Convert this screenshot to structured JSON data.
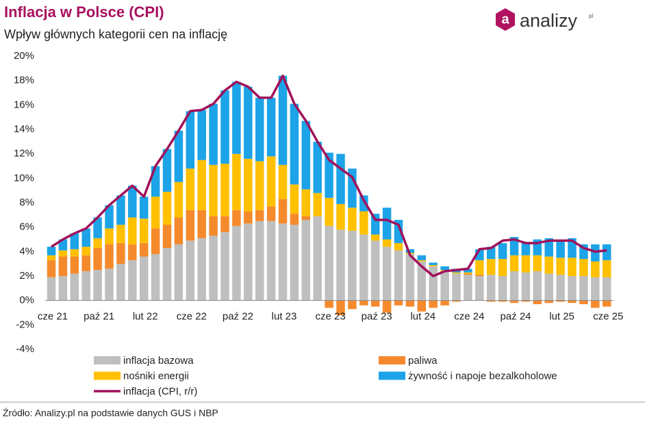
{
  "chart_data": {
    "type": "bar",
    "stacked": true,
    "title": "Inflacja w Polsce (CPI)",
    "subtitle": "Wpływ głównych kategorii cen na inflację",
    "source": "Źródło: Analizy.pl na podstawie danych GUS i NBP",
    "logo": {
      "icon_letter": "a",
      "text": "analizy",
      "suffix": "pl"
    },
    "categories": [
      "cze 21",
      null,
      null,
      null,
      "paź 21",
      null,
      null,
      null,
      "lut 22",
      null,
      null,
      null,
      "cze 22",
      null,
      null,
      null,
      "paź 22",
      null,
      null,
      null,
      "lut 23",
      null,
      null,
      null,
      "cze 23",
      null,
      null,
      null,
      "paź 23",
      null,
      null,
      null,
      "lut 24",
      null,
      null,
      null,
      "cze 24",
      null,
      null,
      null,
      "paź 24",
      null,
      null,
      null,
      "lut 25",
      null,
      null,
      null,
      "cze 25"
    ],
    "ylim": [
      -4,
      20
    ],
    "yticks": [
      {
        "value": -4,
        "label": "-4%"
      },
      {
        "value": -2,
        "label": "-2%"
      },
      {
        "value": 0,
        "label": "0%"
      },
      {
        "value": 2,
        "label": "2%"
      },
      {
        "value": 4,
        "label": "4%"
      },
      {
        "value": 6,
        "label": "6%"
      },
      {
        "value": 8,
        "label": "8%"
      },
      {
        "value": 10,
        "label": "10%"
      },
      {
        "value": 12,
        "label": "12%"
      },
      {
        "value": 14,
        "label": "14%"
      },
      {
        "value": 16,
        "label": "16%"
      },
      {
        "value": 18,
        "label": "18%"
      },
      {
        "value": 20,
        "label": "20%"
      }
    ],
    "grid": false,
    "series": [
      {
        "name": "inflacja bazowa",
        "type": "bar",
        "color": "#bfbfbf",
        "values": [
          1.9,
          2.0,
          2.2,
          2.4,
          2.5,
          2.6,
          3.0,
          3.3,
          3.6,
          3.8,
          4.3,
          4.6,
          4.9,
          5.1,
          5.3,
          5.6,
          6.1,
          6.3,
          6.5,
          6.5,
          6.3,
          6.2,
          6.6,
          6.9,
          6.1,
          5.8,
          5.7,
          5.4,
          4.9,
          4.4,
          4.1,
          3.8,
          3.2,
          2.8,
          2.4,
          2.2,
          2.1,
          2.0,
          2.1,
          2.0,
          2.4,
          2.3,
          2.4,
          2.2,
          2.1,
          2.0,
          2.0,
          1.9,
          1.9
        ]
      },
      {
        "name": "paliwa",
        "type": "bar",
        "color": "#f58a2c",
        "values": [
          1.4,
          1.6,
          1.4,
          1.3,
          1.8,
          2.0,
          1.7,
          1.3,
          1.1,
          2.1,
          1.9,
          2.2,
          2.5,
          2.3,
          1.6,
          1.3,
          1.3,
          1.0,
          0.9,
          1.2,
          2.0,
          0.9,
          0.3,
          0.0,
          -0.6,
          -1.2,
          -0.7,
          -0.4,
          -0.5,
          -1.0,
          -0.4,
          -0.5,
          -0.9,
          -0.6,
          -0.4,
          -0.1,
          0.1,
          0.1,
          -0.1,
          -0.1,
          -0.2,
          -0.1,
          -0.3,
          -0.2,
          -0.1,
          -0.2,
          -0.3,
          -0.6,
          -0.5
        ]
      },
      {
        "name": "nośniki energii",
        "type": "bar",
        "color": "#ffc000",
        "values": [
          0.4,
          0.5,
          0.6,
          0.7,
          0.8,
          1.3,
          1.5,
          2.2,
          2.0,
          2.6,
          2.7,
          2.9,
          3.4,
          4.1,
          4.2,
          4.3,
          4.6,
          4.3,
          4.0,
          4.1,
          2.8,
          2.4,
          2.2,
          1.9,
          2.3,
          2.1,
          1.9,
          1.9,
          0.5,
          0.6,
          0.6,
          0.1,
          0.1,
          0.1,
          0.1,
          0.1,
          0.1,
          1.2,
          1.3,
          1.4,
          1.3,
          1.4,
          1.3,
          1.4,
          1.4,
          1.5,
          1.4,
          1.3,
          1.4
        ]
      },
      {
        "name": "żywność i napoje bezalkoholowe",
        "type": "bar",
        "color": "#1ca3e8",
        "values": [
          0.7,
          0.9,
          1.3,
          1.5,
          1.7,
          1.9,
          2.4,
          2.6,
          1.8,
          2.5,
          3.5,
          4.2,
          4.7,
          4.1,
          5.0,
          6.0,
          5.9,
          5.9,
          5.2,
          4.8,
          7.3,
          6.6,
          5.6,
          4.2,
          3.7,
          4.1,
          3.2,
          1.3,
          1.7,
          2.6,
          1.9,
          0.3,
          0.4,
          0.2,
          0.3,
          0.3,
          0.3,
          0.9,
          1.0,
          1.3,
          1.5,
          1.1,
          1.3,
          1.5,
          1.5,
          1.6,
          1.2,
          1.4,
          1.3
        ]
      },
      {
        "name": "inflacja (CPI, r/r)",
        "type": "line",
        "color": "#a0115a",
        "values": [
          4.4,
          5.0,
          5.5,
          5.9,
          6.8,
          7.8,
          8.6,
          9.4,
          8.5,
          11.0,
          12.4,
          13.9,
          15.5,
          15.6,
          16.1,
          17.2,
          17.9,
          17.5,
          16.6,
          16.6,
          18.4,
          16.1,
          14.7,
          13.0,
          11.5,
          10.8,
          10.1,
          8.2,
          6.6,
          6.6,
          6.2,
          3.7,
          2.8,
          2.0,
          2.4,
          2.5,
          2.6,
          4.2,
          4.3,
          4.9,
          5.0,
          4.7,
          4.7,
          4.9,
          4.9,
          4.9,
          4.3,
          4.0,
          4.1
        ]
      }
    ]
  }
}
